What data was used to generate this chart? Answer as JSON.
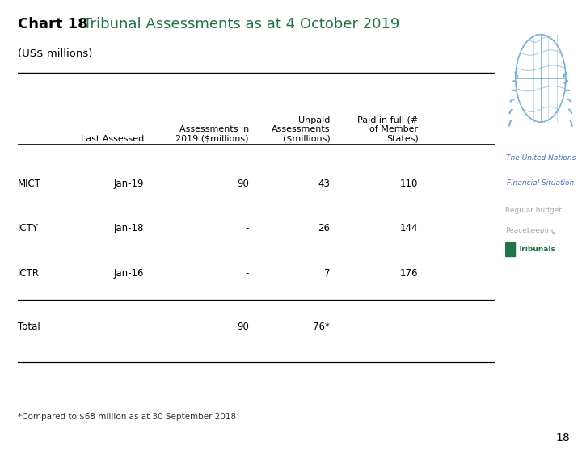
{
  "title_bold": "Chart 18",
  "title_dash": " - ",
  "title_green": "Tribunal Assessments as at 4 October 2019",
  "subtitle": "(US$ millions)",
  "col_headers_line1": [
    "",
    "",
    "Unpaid",
    "Paid in full (#"
  ],
  "col_headers_line2": [
    "Last Assessed",
    "Assessments in",
    "Assessments",
    "of Member"
  ],
  "col_headers_line3": [
    "",
    "2019 ($millions)",
    "($millions)",
    "States)"
  ],
  "rows": [
    [
      "MICT",
      "Jan-19",
      "90",
      "43",
      "110"
    ],
    [
      "ICTY",
      "Jan-18",
      "-",
      "26",
      "144"
    ],
    [
      "ICTR",
      "Jan-16",
      "-",
      "7",
      "176"
    ],
    [
      "Total",
      "",
      "90",
      "76*",
      ""
    ]
  ],
  "footnote": "*Compared to $68 million as at 30 September 2018",
  "page_number": "18",
  "legend_items": [
    "Regular budget",
    "Peacekeeping",
    "Tribunals"
  ],
  "legend_colors": [
    "#aaaaaa",
    "#aaaaaa",
    "#217346"
  ],
  "side_bar_color": "#217346",
  "title_color_bold": "#000000",
  "title_color_green": "#217346",
  "subtitle_color": "#000000",
  "table_header_color": "#000000",
  "table_data_color": "#000000",
  "background_color": "#ffffff",
  "un_logo_color": "#7bafd4",
  "un_text_color": "#4472C4"
}
